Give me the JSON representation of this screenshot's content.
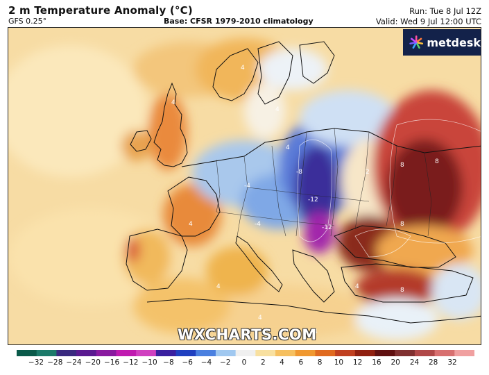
{
  "header": {
    "title": "2 m Temperature Anomaly (°C)",
    "model": "GFS 0.25°",
    "base": "Base: CFSR 1979-2010 climatology",
    "run": "Run: Tue 8 Jul 12Z",
    "valid": "Valid: Wed 9 Jul 12:00 UTC"
  },
  "brand": {
    "name": "metdesk",
    "icon": "metdesk-logo-icon"
  },
  "watermark": "WXCHARTS.COM",
  "colorbar": {
    "ticks": [
      "−32",
      "−28",
      "−24",
      "−20",
      "−16",
      "−12",
      "−10",
      "−8",
      "−6",
      "−4",
      "−2",
      "0",
      "2",
      "4",
      "6",
      "8",
      "10",
      "12",
      "16",
      "20",
      "24",
      "28",
      "32"
    ],
    "colors": [
      "#0a5a4a",
      "#1c7a6a",
      "#3a2a80",
      "#5a1a90",
      "#8a1aa0",
      "#c01ab0",
      "#d040c0",
      "#3a20a0",
      "#2040c0",
      "#4a80e0",
      "#a0c8f0",
      "#f0f0f0",
      "#f8e0a0",
      "#f6c060",
      "#f09830",
      "#e06a20",
      "#c04020",
      "#902010",
      "#601010",
      "#803030",
      "#b04848",
      "#d87070",
      "#f0a0a0"
    ]
  },
  "map": {
    "anomaly_labels": [
      "4",
      "4",
      "4",
      "4",
      "4",
      "2",
      "8",
      "8",
      "8",
      "8",
      "-4",
      "-4",
      "-12",
      "-12",
      "-8",
      "4",
      "4",
      "4",
      "4"
    ]
  }
}
